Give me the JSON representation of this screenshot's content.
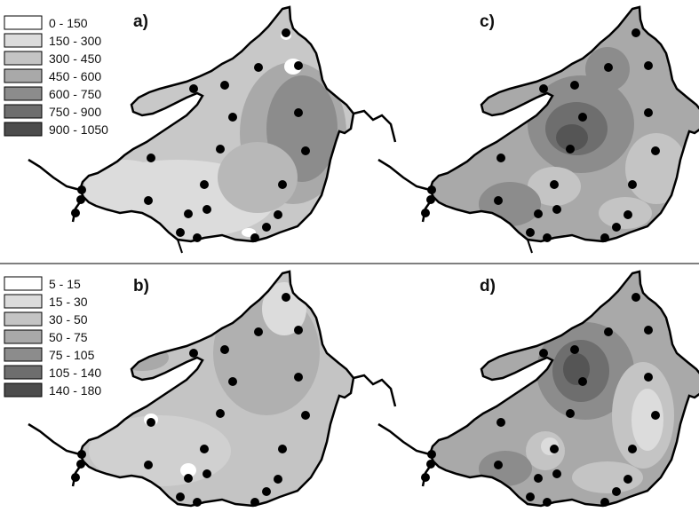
{
  "legend_top": {
    "classes": [
      "0 - 150",
      "150 - 300",
      "300 - 450",
      "450 - 600",
      "600 - 750",
      "750 - 900",
      "900 - 1050"
    ],
    "colors": [
      "#ffffff",
      "#dcdcdc",
      "#c4c4c4",
      "#a9a9a9",
      "#8c8c8c",
      "#6e6e6e",
      "#4c4c4c"
    ]
  },
  "legend_bottom": {
    "classes": [
      "5 - 15",
      "15 - 30",
      "30 - 50",
      "50 - 75",
      "75 - 105",
      "105 - 140",
      "140 - 180"
    ],
    "colors": [
      "#ffffff",
      "#dcdcdc",
      "#c4c4c4",
      "#a9a9a9",
      "#8c8c8c",
      "#6e6e6e",
      "#4c4c4c"
    ]
  },
  "panels": {
    "a": "a)",
    "b": "b)",
    "c": "c)",
    "d": "d)"
  }
}
